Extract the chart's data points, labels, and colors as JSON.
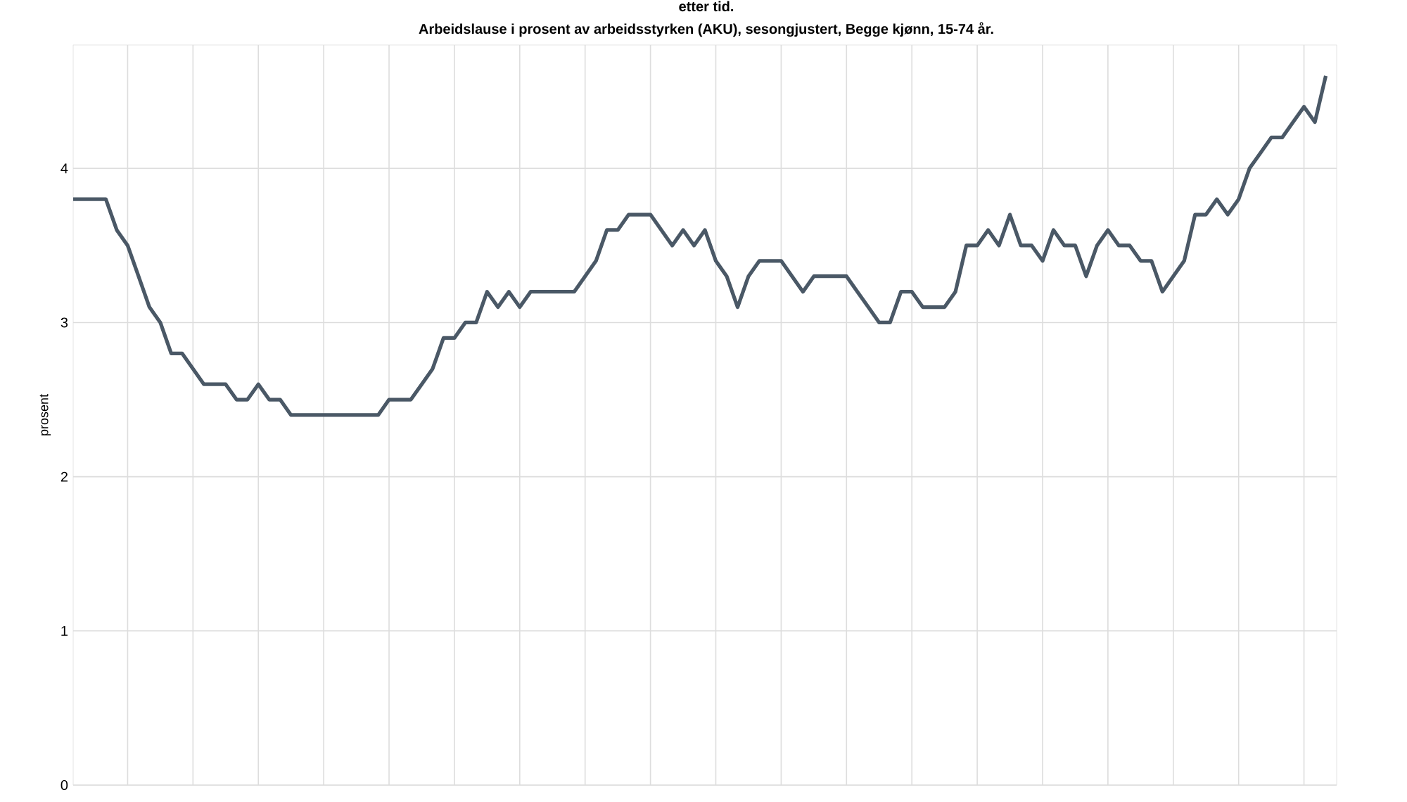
{
  "chart_data": {
    "type": "line",
    "title": "etter tid.",
    "subtitle": "Arbeidslause i prosent av arbeidsstyrken (AKU), sesongjustert, Begge kjønn, 15-74 år.",
    "ylabel": "prosent",
    "categories": [
      null,
      null,
      null,
      null,
      null,
      null,
      null,
      null,
      null,
      null,
      null,
      null,
      null,
      null,
      null,
      null,
      null,
      null,
      null,
      null,
      null,
      null,
      null,
      null,
      null,
      null,
      null,
      null,
      null,
      null,
      null,
      null,
      null,
      null,
      null,
      null,
      null,
      null,
      null,
      null,
      null,
      null,
      null,
      null,
      null,
      null,
      null,
      null,
      null,
      null,
      null,
      null,
      null,
      null,
      null,
      null,
      null,
      null,
      null,
      null,
      null,
      null,
      null,
      null,
      null,
      null,
      null,
      null,
      null,
      null,
      null,
      null,
      null,
      null,
      null,
      null,
      null,
      null,
      null,
      null,
      null,
      null,
      null,
      null,
      null,
      null,
      null,
      null,
      null,
      null,
      null,
      null,
      null,
      null,
      null,
      null,
      null,
      null,
      null,
      null,
      null,
      null,
      null,
      null,
      null,
      null,
      null,
      null,
      null,
      null,
      null,
      null,
      null,
      null,
      null,
      null
    ],
    "series": [
      {
        "color": "#4a5866",
        "values": [
          3.8,
          3.8,
          3.8,
          3.8,
          3.6,
          3.5,
          3.3,
          3.1,
          3.0,
          2.8,
          2.8,
          2.7,
          2.6,
          2.6,
          2.6,
          2.5,
          2.5,
          2.6,
          2.5,
          2.5,
          2.4,
          2.4,
          2.4,
          2.4,
          2.4,
          2.4,
          2.4,
          2.4,
          2.4,
          2.5,
          2.5,
          2.5,
          2.6,
          2.7,
          2.9,
          2.9,
          3.0,
          3.0,
          3.2,
          3.1,
          3.2,
          3.1,
          3.2,
          3.2,
          3.2,
          3.2,
          3.2,
          3.3,
          3.4,
          3.6,
          3.6,
          3.7,
          3.7,
          3.7,
          3.6,
          3.5,
          3.6,
          3.5,
          3.6,
          3.4,
          3.3,
          3.1,
          3.3,
          3.4,
          3.4,
          3.4,
          3.3,
          3.2,
          3.3,
          3.3,
          3.3,
          3.3,
          3.2,
          3.1,
          3.0,
          3.0,
          3.2,
          3.2,
          3.1,
          3.1,
          3.1,
          3.2,
          3.5,
          3.5,
          3.6,
          3.5,
          3.7,
          3.5,
          3.5,
          3.4,
          3.6,
          3.5,
          3.5,
          3.3,
          3.5,
          3.6,
          3.5,
          3.5,
          3.4,
          3.4,
          3.2,
          3.3,
          3.4,
          3.7,
          3.7,
          3.8,
          3.7,
          3.8,
          4.0,
          4.1,
          4.2,
          4.2,
          4.3,
          4.4,
          4.3,
          4.6
        ]
      }
    ],
    "ylim": [
      0,
      4.8
    ],
    "yticks": [
      0,
      1,
      2,
      3,
      4
    ],
    "grid": true,
    "tick_labels": "y",
    "marker": "none",
    "line_style": "solid"
  }
}
